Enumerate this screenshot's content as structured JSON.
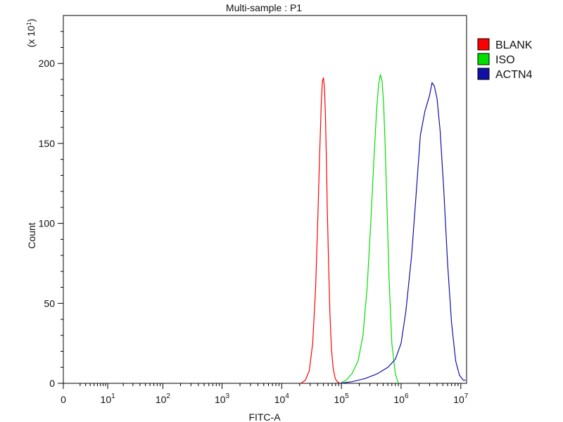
{
  "chart_data": {
    "type": "line",
    "title": "Multi-sample : P1",
    "xlabel": "FITC-A",
    "ylabel": "Count",
    "y_multiplier": "(x 10",
    "y_multiplier_exp": "1",
    "y_multiplier_close": ")",
    "x_scale": "biexponential-log",
    "xlim": [
      0,
      12500000
    ],
    "ylim": [
      0,
      230
    ],
    "grid": false,
    "legend_position": "right",
    "x_ticks": [
      {
        "value": 0,
        "base": "0",
        "exp": ""
      },
      {
        "value": 10,
        "base": "10",
        "exp": "1"
      },
      {
        "value": 100,
        "base": "10",
        "exp": "2"
      },
      {
        "value": 1000,
        "base": "10",
        "exp": "3"
      },
      {
        "value": 10000,
        "base": "10",
        "exp": "4"
      },
      {
        "value": 100000,
        "base": "10",
        "exp": "5"
      },
      {
        "value": 1000000,
        "base": "10",
        "exp": "6"
      },
      {
        "value": 10000000,
        "base": "10",
        "exp": "7"
      }
    ],
    "y_ticks": [
      0,
      50,
      100,
      150,
      200
    ],
    "series": [
      {
        "name": "BLANK",
        "color": "#ff0000",
        "x": [
          21000,
          25000,
          29000,
          33000,
          37000,
          40000,
          43000,
          46000,
          48000,
          50000,
          52000,
          54000,
          56000,
          58000,
          61000,
          64000,
          68000,
          73000,
          79000,
          85000,
          95000
        ],
        "y": [
          0,
          2,
          8,
          25,
          60,
          100,
          140,
          175,
          189,
          191,
          185,
          168,
          140,
          110,
          75,
          45,
          22,
          9,
          3,
          1,
          0
        ]
      },
      {
        "name": "ISO",
        "color": "#00e000",
        "x": [
          95000,
          120000,
          150000,
          190000,
          230000,
          270000,
          310000,
          350000,
          390000,
          420000,
          450000,
          480000,
          510000,
          540000,
          580000,
          630000,
          700000,
          800000,
          900000
        ],
        "y": [
          0,
          2,
          6,
          14,
          30,
          60,
          100,
          140,
          172,
          187,
          193,
          189,
          175,
          150,
          110,
          65,
          25,
          6,
          0
        ]
      },
      {
        "name": "ACTN4",
        "color": "#1010a8",
        "x": [
          95000,
          150000,
          250000,
          400000,
          600000,
          800000,
          1000000,
          1200000,
          1500000,
          1800000,
          2100000,
          2500000,
          3000000,
          3300000,
          3600000,
          4000000,
          4500000,
          5200000,
          6000000,
          7000000,
          8200000,
          9500000,
          11000000,
          12000000
        ],
        "y": [
          0,
          1,
          3,
          6,
          10,
          15,
          25,
          45,
          80,
          120,
          155,
          170,
          180,
          188,
          186,
          178,
          158,
          120,
          75,
          38,
          14,
          5,
          2,
          2
        ]
      }
    ]
  }
}
